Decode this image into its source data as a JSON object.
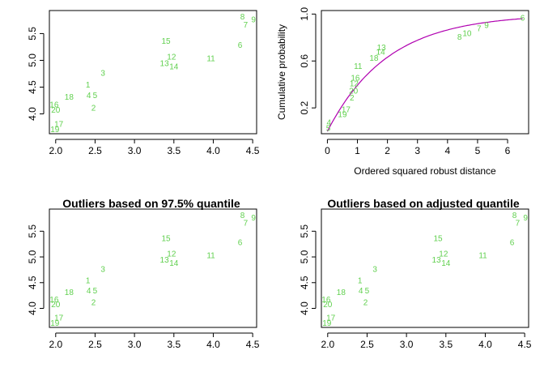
{
  "colors": {
    "point": "#61d04f",
    "curve": "#b000b0",
    "axis": "#000000"
  },
  "chart_data": [
    {
      "type": "scatter",
      "title": "",
      "xlabel": "",
      "ylabel": "",
      "xlim": [
        1.92,
        4.55
      ],
      "ylim": [
        3.63,
        5.93
      ],
      "xticks": [
        2.0,
        2.5,
        3.0,
        3.5,
        4.0,
        4.5
      ],
      "xtick_labels": [
        "2.0",
        "2.5",
        "3.0",
        "3.5",
        "4.0",
        "4.5"
      ],
      "yticks": [
        4.0,
        4.5,
        5.0,
        5.5
      ],
      "ytick_labels": [
        "4.0",
        "4.5",
        "5.0",
        "5.5"
      ],
      "points": [
        {
          "label": "1",
          "x": 2.41,
          "y": 4.53
        },
        {
          "label": "2",
          "x": 2.48,
          "y": 4.1
        },
        {
          "label": "3",
          "x": 2.6,
          "y": 4.75
        },
        {
          "label": "4",
          "x": 2.42,
          "y": 4.33
        },
        {
          "label": "5",
          "x": 2.5,
          "y": 4.33
        },
        {
          "label": "6",
          "x": 4.34,
          "y": 5.27
        },
        {
          "label": "7",
          "x": 4.41,
          "y": 5.65
        },
        {
          "label": "8",
          "x": 4.37,
          "y": 5.8
        },
        {
          "label": "9",
          "x": 4.51,
          "y": 5.75
        },
        {
          "label": "11",
          "x": 3.97,
          "y": 5.02
        },
        {
          "label": "12",
          "x": 3.47,
          "y": 5.05
        },
        {
          "label": "13",
          "x": 3.38,
          "y": 4.93
        },
        {
          "label": "14",
          "x": 3.5,
          "y": 4.87
        },
        {
          "label": "15",
          "x": 3.4,
          "y": 5.35
        },
        {
          "label": "16",
          "x": 1.98,
          "y": 4.16
        },
        {
          "label": "17",
          "x": 2.04,
          "y": 3.8
        },
        {
          "label": "18",
          "x": 2.17,
          "y": 4.3
        },
        {
          "label": "19",
          "x": 1.99,
          "y": 3.7
        },
        {
          "label": "20",
          "x": 2.0,
          "y": 4.06
        }
      ]
    },
    {
      "type": "scatter",
      "title": "",
      "xlabel": "Ordered squared robust distance",
      "ylabel": "Cumulative probability",
      "xlim": [
        -0.2,
        6.7
      ],
      "ylim": [
        -0.02,
        1.03
      ],
      "xticks": [
        0,
        1,
        2,
        3,
        4,
        5,
        6
      ],
      "xtick_labels": [
        "0",
        "1",
        "2",
        "3",
        "4",
        "5",
        "6"
      ],
      "yticks": [
        0.2,
        0.6,
        1.0
      ],
      "ytick_labels": [
        "0.2",
        "0.6",
        "1.0"
      ],
      "curve": "chi-square CDF (df = 2)",
      "points": [
        {
          "label": "5",
          "x": 0.03,
          "y": 0.02
        },
        {
          "label": "4",
          "x": 0.05,
          "y": 0.07
        },
        {
          "label": "19",
          "x": 0.5,
          "y": 0.14
        },
        {
          "label": "17",
          "x": 0.62,
          "y": 0.18
        },
        {
          "label": "2",
          "x": 0.82,
          "y": 0.28
        },
        {
          "label": "20",
          "x": 0.87,
          "y": 0.34
        },
        {
          "label": "12",
          "x": 0.89,
          "y": 0.4
        },
        {
          "label": "16",
          "x": 0.93,
          "y": 0.45
        },
        {
          "label": "11",
          "x": 1.02,
          "y": 0.55
        },
        {
          "label": "18",
          "x": 1.55,
          "y": 0.62
        },
        {
          "label": "14",
          "x": 1.77,
          "y": 0.67
        },
        {
          "label": "13",
          "x": 1.8,
          "y": 0.71
        },
        {
          "label": "8",
          "x": 4.4,
          "y": 0.8
        },
        {
          "label": "10",
          "x": 4.65,
          "y": 0.83
        },
        {
          "label": "7",
          "x": 5.05,
          "y": 0.87
        },
        {
          "label": "9",
          "x": 5.3,
          "y": 0.9
        },
        {
          "label": "6",
          "x": 6.5,
          "y": 0.96
        }
      ]
    },
    {
      "type": "scatter",
      "title": "Outliers based on 97.5% quantile",
      "xlabel": "",
      "ylabel": "",
      "xlim": [
        1.92,
        4.55
      ],
      "ylim": [
        3.63,
        5.93
      ],
      "xticks": [
        2.0,
        2.5,
        3.0,
        3.5,
        4.0,
        4.5
      ],
      "xtick_labels": [
        "2.0",
        "2.5",
        "3.0",
        "3.5",
        "4.0",
        "4.5"
      ],
      "yticks": [
        4.0,
        4.5,
        5.0,
        5.5
      ],
      "ytick_labels": [
        "4.0",
        "4.5",
        "5.0",
        "5.5"
      ],
      "points": [
        {
          "label": "1",
          "x": 2.41,
          "y": 4.53
        },
        {
          "label": "2",
          "x": 2.48,
          "y": 4.1
        },
        {
          "label": "3",
          "x": 2.6,
          "y": 4.75
        },
        {
          "label": "4",
          "x": 2.42,
          "y": 4.33
        },
        {
          "label": "5",
          "x": 2.5,
          "y": 4.33
        },
        {
          "label": "6",
          "x": 4.34,
          "y": 5.27
        },
        {
          "label": "7",
          "x": 4.41,
          "y": 5.65
        },
        {
          "label": "8",
          "x": 4.37,
          "y": 5.8
        },
        {
          "label": "9",
          "x": 4.51,
          "y": 5.75
        },
        {
          "label": "11",
          "x": 3.97,
          "y": 5.02
        },
        {
          "label": "12",
          "x": 3.47,
          "y": 5.05
        },
        {
          "label": "13",
          "x": 3.38,
          "y": 4.93
        },
        {
          "label": "14",
          "x": 3.5,
          "y": 4.87
        },
        {
          "label": "15",
          "x": 3.4,
          "y": 5.35
        },
        {
          "label": "16",
          "x": 1.98,
          "y": 4.16
        },
        {
          "label": "17",
          "x": 2.04,
          "y": 3.8
        },
        {
          "label": "18",
          "x": 2.17,
          "y": 4.3
        },
        {
          "label": "19",
          "x": 1.99,
          "y": 3.7
        },
        {
          "label": "20",
          "x": 2.0,
          "y": 4.06
        }
      ]
    },
    {
      "type": "scatter",
      "title": "Outliers based on adjusted quantile",
      "xlabel": "",
      "ylabel": "",
      "xlim": [
        1.92,
        4.55
      ],
      "ylim": [
        3.63,
        5.93
      ],
      "xticks": [
        2.0,
        2.5,
        3.0,
        3.5,
        4.0,
        4.5
      ],
      "xtick_labels": [
        "2.0",
        "2.5",
        "3.0",
        "3.5",
        "4.0",
        "4.5"
      ],
      "yticks": [
        4.0,
        4.5,
        5.0,
        5.5
      ],
      "ytick_labels": [
        "4.0",
        "4.5",
        "5.0",
        "5.5"
      ],
      "points": [
        {
          "label": "1",
          "x": 2.41,
          "y": 4.53
        },
        {
          "label": "2",
          "x": 2.48,
          "y": 4.1
        },
        {
          "label": "3",
          "x": 2.6,
          "y": 4.75
        },
        {
          "label": "4",
          "x": 2.42,
          "y": 4.33
        },
        {
          "label": "5",
          "x": 2.5,
          "y": 4.33
        },
        {
          "label": "6",
          "x": 4.34,
          "y": 5.27
        },
        {
          "label": "7",
          "x": 4.41,
          "y": 5.65
        },
        {
          "label": "8",
          "x": 4.37,
          "y": 5.8
        },
        {
          "label": "9",
          "x": 4.51,
          "y": 5.75
        },
        {
          "label": "11",
          "x": 3.97,
          "y": 5.02
        },
        {
          "label": "12",
          "x": 3.47,
          "y": 5.05
        },
        {
          "label": "13",
          "x": 3.38,
          "y": 4.93
        },
        {
          "label": "14",
          "x": 3.5,
          "y": 4.87
        },
        {
          "label": "15",
          "x": 3.4,
          "y": 5.35
        },
        {
          "label": "16",
          "x": 1.98,
          "y": 4.16
        },
        {
          "label": "17",
          "x": 2.04,
          "y": 3.8
        },
        {
          "label": "18",
          "x": 2.17,
          "y": 4.3
        },
        {
          "label": "19",
          "x": 1.99,
          "y": 3.7
        },
        {
          "label": "20",
          "x": 2.0,
          "y": 4.06
        }
      ]
    }
  ]
}
